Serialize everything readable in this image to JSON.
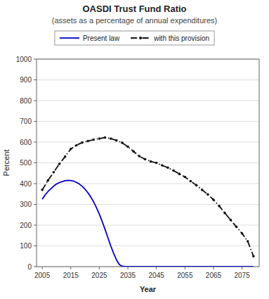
{
  "chart_data": {
    "type": "line",
    "title": "OASDI Trust Fund Ratio",
    "subtitle": "(assets as a percentage of annual expenditures)",
    "xlabel": "Year",
    "ylabel": "Percent",
    "xlim": [
      2003,
      2081
    ],
    "xticks": [
      2005,
      2015,
      2025,
      2035,
      2045,
      2055,
      2065,
      2075
    ],
    "ylim": [
      0,
      1000
    ],
    "yticks": [
      0,
      100,
      200,
      300,
      400,
      500,
      600,
      700,
      800,
      900,
      1000
    ],
    "grid": true,
    "legend": "top",
    "series": [
      {
        "name": "Present law",
        "color": "#0000CC",
        "line_style": "solid",
        "x": [
          2005,
          2006,
          2007,
          2008,
          2009,
          2010,
          2011,
          2012,
          2013,
          2014,
          2015,
          2016,
          2017,
          2018,
          2019,
          2020,
          2021,
          2022,
          2023,
          2024,
          2025,
          2026,
          2027,
          2028,
          2029,
          2030,
          2031,
          2032,
          2033,
          2034,
          2035,
          2036,
          2037,
          2038,
          2079
        ],
        "values": [
          325,
          345,
          362,
          375,
          388,
          398,
          405,
          410,
          414,
          416,
          415,
          412,
          406,
          398,
          387,
          373,
          356,
          336,
          312,
          284,
          253,
          218,
          180,
          140,
          100,
          65,
          33,
          10,
          2,
          0,
          0,
          0,
          0,
          0,
          0
        ]
      },
      {
        "name": "with this provision",
        "color": "#111111",
        "line_style": "dashdot",
        "marker": "point",
        "x": [
          2005,
          2007,
          2009,
          2011,
          2013,
          2015,
          2017,
          2019,
          2021,
          2023,
          2025,
          2027,
          2029,
          2031,
          2033,
          2035,
          2037,
          2039,
          2041,
          2043,
          2045,
          2047,
          2049,
          2051,
          2053,
          2055,
          2057,
          2059,
          2061,
          2063,
          2065,
          2067,
          2069,
          2071,
          2073,
          2075,
          2077,
          2079
        ],
        "values": [
          370,
          415,
          455,
          495,
          530,
          567,
          585,
          598,
          605,
          612,
          617,
          622,
          617,
          608,
          597,
          578,
          555,
          532,
          518,
          507,
          500,
          488,
          477,
          463,
          447,
          432,
          412,
          392,
          370,
          348,
          322,
          292,
          258,
          225,
          192,
          160,
          122,
          50
        ]
      }
    ]
  }
}
